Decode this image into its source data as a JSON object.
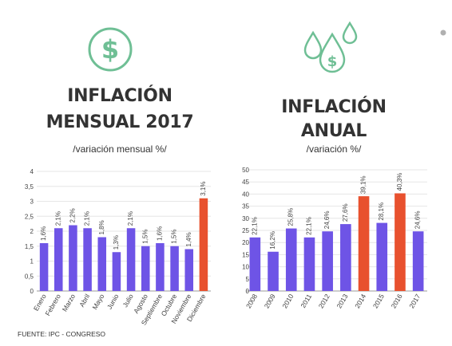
{
  "page": {
    "left_title": "INFLACIÓN MENSUAL 2017",
    "left_subtitle": "/variación mensual %/",
    "right_title": "INFLACIÓN ANUAL",
    "right_subtitle": "/variación %/",
    "source": "FUENTE: IPC - CONGRESO",
    "icons": [
      "dollar-circle-icon",
      "money-drops-icon",
      "dots-icon"
    ]
  },
  "colors": {
    "bar": "#6e54e6",
    "highlight": "#e8512e",
    "grid": "#e6e6e6",
    "icon": "#6fbf95"
  },
  "chart_data": [
    {
      "type": "bar",
      "title": "INFLACIÓN MENSUAL 2017",
      "subtitle": "/variación mensual %/",
      "categories": [
        "Enero",
        "Febrero",
        "Marzo",
        "Abril",
        "Mayo",
        "Junio",
        "Julio",
        "Agosto",
        "Septiembre",
        "Octubre",
        "Noviembre",
        "Diciembre"
      ],
      "values": [
        1.6,
        2.1,
        2.2,
        2.1,
        1.8,
        1.3,
        2.1,
        1.5,
        1.6,
        1.5,
        1.4,
        3.1
      ],
      "labels": [
        "1,6%",
        "2,1%",
        "2,2%",
        "2,1%",
        "1,8%",
        "1,3%",
        "2,1%",
        "1,5%",
        "1,6%",
        "1,5%",
        "1,4%",
        "3,1%"
      ],
      "highlight": [
        11
      ],
      "ylim": [
        0,
        4
      ],
      "yticks": [
        "0",
        "0,5",
        "1",
        "1,5",
        "2",
        "2,5",
        "3",
        "3,5",
        "4"
      ],
      "grid": true,
      "xlabel": "",
      "ylabel": ""
    },
    {
      "type": "bar",
      "title": "INFLACIÓN ANUAL",
      "subtitle": "/variación %/",
      "categories": [
        "2008",
        "2009",
        "2010",
        "2011",
        "2012",
        "2013",
        "2014",
        "2015",
        "2016",
        "2017"
      ],
      "values": [
        22.1,
        16.2,
        25.8,
        22.1,
        24.6,
        27.6,
        39.1,
        28.1,
        40.3,
        24.6
      ],
      "labels": [
        "22,1%",
        "16,2%",
        "25,8%",
        "22,1%",
        "24,6%",
        "27,6%",
        "39,1%",
        "28,1%",
        "40,3%",
        "24,6%"
      ],
      "highlight": [
        6,
        8
      ],
      "ylim": [
        0,
        50
      ],
      "yticks": [
        "0",
        "5",
        "10",
        "15",
        "20",
        "25",
        "30",
        "35",
        "40",
        "45",
        "50"
      ],
      "grid": true,
      "xlabel": "",
      "ylabel": ""
    }
  ]
}
